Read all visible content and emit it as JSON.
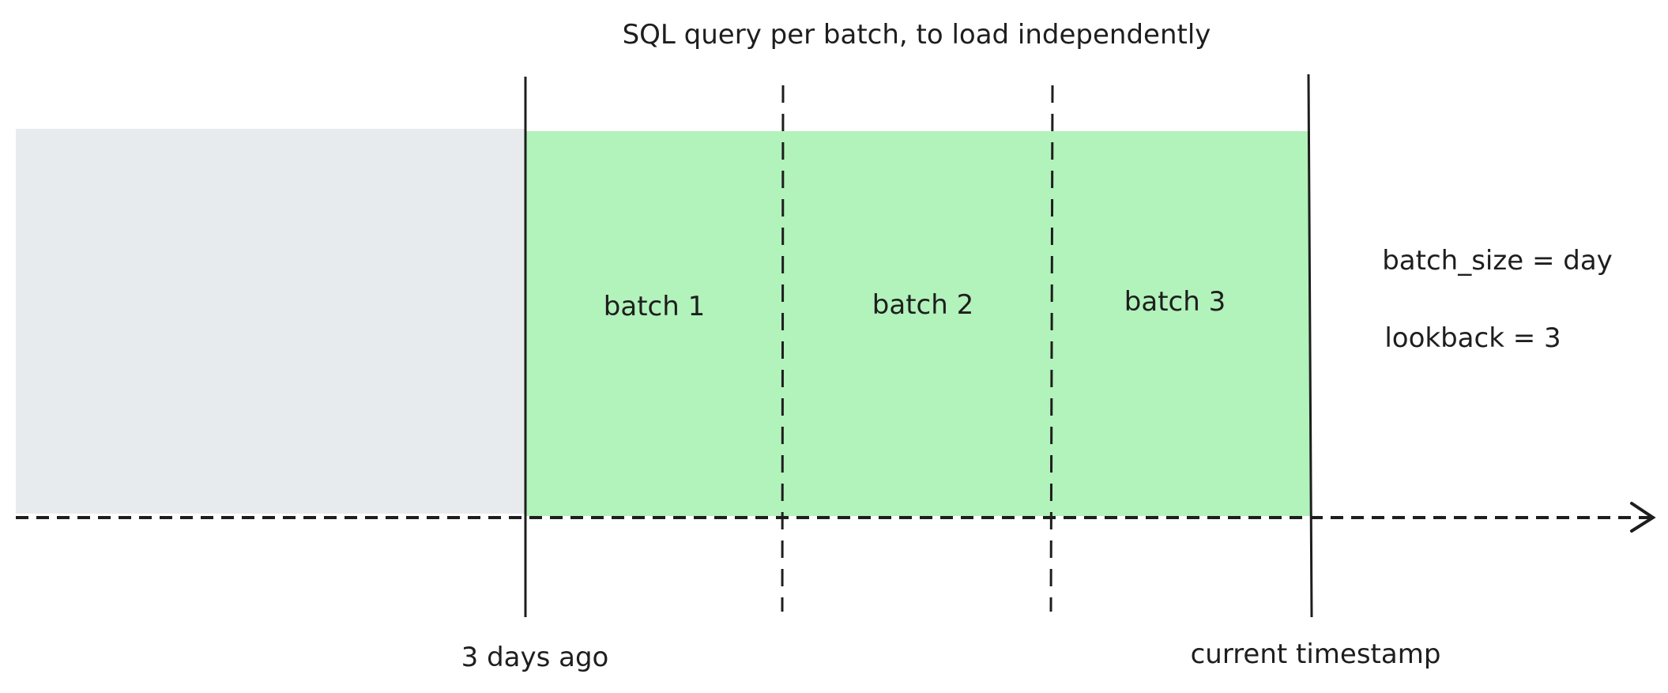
{
  "title": "SQL query per batch, to load independently",
  "batches": [
    {
      "label": "batch 1"
    },
    {
      "label": "batch 2"
    },
    {
      "label": "batch 3"
    }
  ],
  "params": {
    "batch_size": "batch_size = day",
    "lookback": "lookback = 3"
  },
  "markers": {
    "start": "3 days ago",
    "end": "current timestamp"
  },
  "colors": {
    "past_region": "#e8ebee",
    "batch_region": "#b2f2bb",
    "stroke": "#1e1e1e"
  }
}
